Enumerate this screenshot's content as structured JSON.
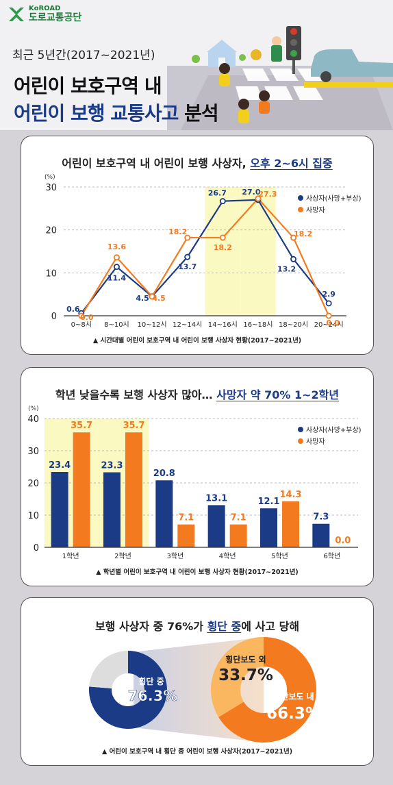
{
  "logo": {
    "org_en": "KoROAD",
    "org_ko": "도로교통공단"
  },
  "header": {
    "period": "최근 5년간(2017~2021년)",
    "title_line1": "어린이 보호구역 내",
    "title_line2_hl": "어린이 보행 교통사고",
    "title_line2_rest": " 분석"
  },
  "colors": {
    "navy": "#1b3b86",
    "orange": "#f47a20",
    "light_orange": "#fbb760",
    "highlight": "#fbf9c2",
    "grey": "#dddddd"
  },
  "section1": {
    "title_plain": "어린이 보호구역 내 어린이 보행 사상자, ",
    "title_emph": "오후 2~6시 집중",
    "caption": "▲ 시간대별 어린이 보호구역 내 어린이 보행 사상자 현황(2017~2021년)"
  },
  "section2": {
    "title_plain": "학년 낮을수록 보행 사상자 많아… ",
    "title_emph": "사망자 약 70% 1~2학년",
    "caption": "▲ 학년별 어린이 보호구역 내 어린이 보행 사상자 현황(2017~2021년)"
  },
  "section3": {
    "title_pre": "보행 사상자 중 76%가 ",
    "title_emph": "횡단 중",
    "title_post": "에 사고 당해",
    "caption": "▲ 어린이 보호구역 내 횡단 중 어린이 보행 사상자(2017~2021년)"
  },
  "chart_data": [
    {
      "type": "line",
      "unit": "(%)",
      "categories": [
        "0~8시",
        "8~10시",
        "10~12시",
        "12~14시",
        "14~16시",
        "16~18시",
        "18~20시",
        "20~24시"
      ],
      "series": [
        {
          "name": "사상자(사망+부상)",
          "values": [
            0.6,
            11.4,
            4.5,
            13.7,
            26.7,
            27.0,
            13.2,
            2.9
          ]
        },
        {
          "name": "사망자",
          "values": [
            0.0,
            13.6,
            4.5,
            18.2,
            18.2,
            27.3,
            18.2,
            0.0
          ]
        }
      ],
      "ylim": [
        0,
        30
      ],
      "yticks": [
        0,
        10,
        20,
        30
      ],
      "highlighted_categories": [
        "14~16시",
        "16~18시"
      ],
      "legend": "top-right"
    },
    {
      "type": "bar",
      "unit": "(%)",
      "categories": [
        "1학년",
        "2학년",
        "3학년",
        "4학년",
        "5학년",
        "6학년"
      ],
      "series": [
        {
          "name": "사상자(사망+부상)",
          "values": [
            23.4,
            23.3,
            20.8,
            13.1,
            12.1,
            7.3
          ]
        },
        {
          "name": "사망자",
          "values": [
            35.7,
            35.7,
            7.1,
            7.1,
            14.3,
            0.0
          ]
        }
      ],
      "ylim": [
        0,
        40
      ],
      "yticks": [
        0,
        10,
        20,
        30,
        40
      ],
      "highlighted_categories": [
        "1학년",
        "2학년"
      ],
      "legend": "top-right"
    },
    {
      "type": "pie",
      "slices": [
        {
          "label": "횡단 중",
          "value": 76.3,
          "display": "76.3%"
        },
        {
          "label": "",
          "value": 23.7
        }
      ]
    },
    {
      "type": "pie",
      "slices": [
        {
          "label": "횡단보도 외",
          "value": 33.7,
          "display": "33.7%"
        },
        {
          "label": "횡단보도 내",
          "value": 66.3,
          "display": "66.3%"
        }
      ]
    }
  ]
}
